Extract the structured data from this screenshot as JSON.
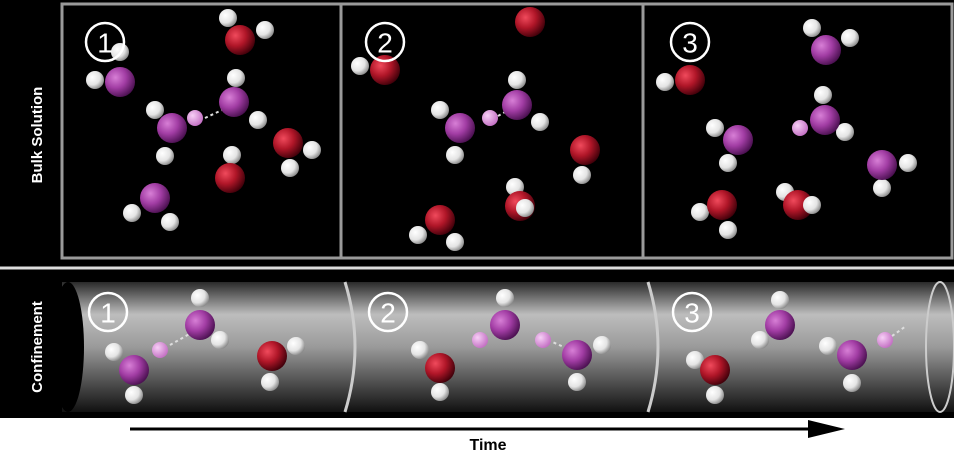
{
  "rows": {
    "bulk": {
      "label": "Bulk Solution",
      "steps": [
        "1",
        "2",
        "3"
      ]
    },
    "confinement": {
      "label": "Confinement",
      "steps": [
        "1",
        "2",
        "3"
      ]
    }
  },
  "axis": {
    "label": "Time"
  }
}
